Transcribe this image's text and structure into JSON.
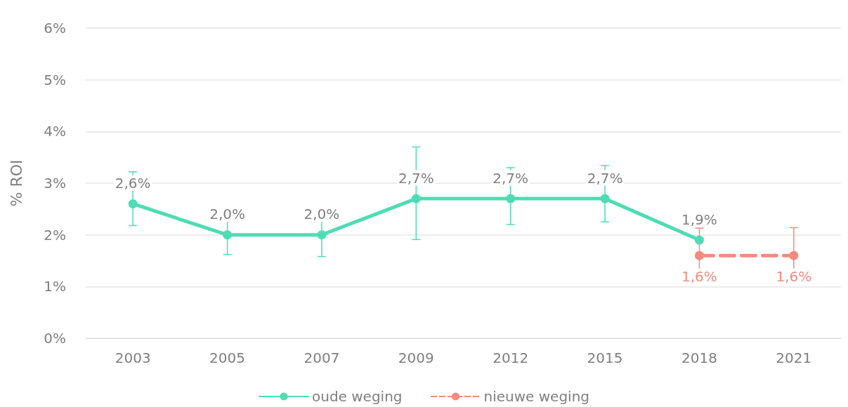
{
  "chart_data": {
    "type": "line",
    "ylabel": "% ROI",
    "categories": [
      "2003",
      "2005",
      "2007",
      "2009",
      "2012",
      "2015",
      "2018",
      "2021"
    ],
    "series": [
      {
        "name": "oude weging",
        "color": "#4fdcb4",
        "line_style": "solid",
        "values": [
          2.6,
          2.0,
          2.0,
          2.7,
          2.7,
          2.7,
          1.9,
          null
        ],
        "errors": [
          [
            2.18,
            3.22
          ],
          [
            1.62,
            2.5
          ],
          [
            1.58,
            2.48
          ],
          [
            1.91,
            3.7
          ],
          [
            2.2,
            3.3
          ],
          [
            2.25,
            3.34
          ],
          null,
          null
        ],
        "value_labels": [
          "2,6%",
          "2,0%",
          "2,0%",
          "2,7%",
          "2,7%",
          "2,7%",
          "1,9%",
          null
        ]
      },
      {
        "name": "nieuwe weging",
        "color": "#f28b7d",
        "line_style": "dashed",
        "values": [
          null,
          null,
          null,
          null,
          null,
          null,
          1.6,
          1.6
        ],
        "errors": [
          null,
          null,
          null,
          null,
          null,
          null,
          [
            1.28,
            2.13
          ],
          [
            1.25,
            2.14
          ]
        ],
        "value_labels": [
          null,
          null,
          null,
          null,
          null,
          null,
          "1,6%",
          "1,6%"
        ]
      }
    ],
    "ylim": [
      0,
      6
    ],
    "yticks": [
      {
        "value": 0,
        "label": "0%"
      },
      {
        "value": 1,
        "label": "1%"
      },
      {
        "value": 2,
        "label": "2%"
      },
      {
        "value": 3,
        "label": "3%"
      },
      {
        "value": 4,
        "label": "4%"
      },
      {
        "value": 5,
        "label": "5%"
      },
      {
        "value": 6,
        "label": "6%"
      }
    ],
    "grid": "y",
    "legend": "bottom",
    "marker": "circle"
  }
}
